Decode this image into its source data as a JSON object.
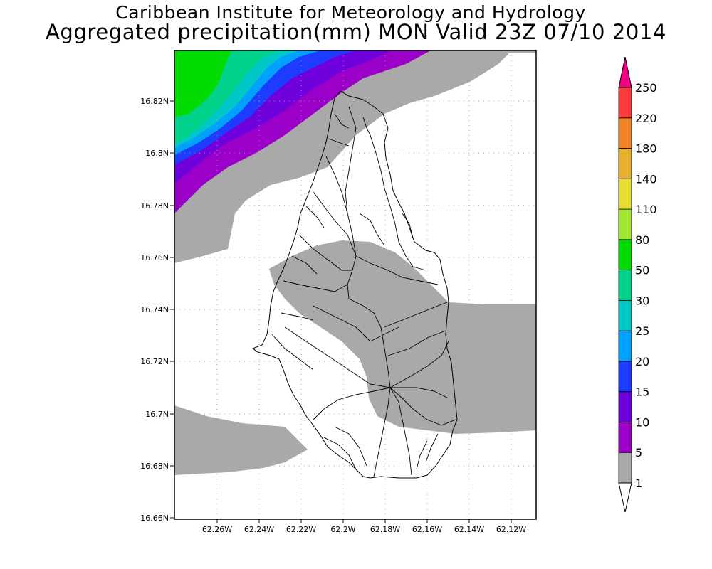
{
  "title": {
    "line1": "Caribbean Institute for Meteorology and Hydrology",
    "line2": "Aggregated precipitation(mm) MON Valid 23Z 07/10 2014"
  },
  "map": {
    "lat_ticks": [
      "16.82N",
      "16.8N",
      "16.78N",
      "16.76N",
      "16.74N",
      "16.72N",
      "16.7N",
      "16.68N",
      "16.66N"
    ],
    "lon_ticks": [
      "62.26W",
      "62.24W",
      "62.22W",
      "62.2W",
      "62.18W",
      "62.16W",
      "62.14W",
      "62.12W"
    ],
    "grid": true,
    "background_color": "#ffffff"
  },
  "legend": {
    "levels": [
      {
        "label": "1",
        "color": "#ffffff"
      },
      {
        "label": "5",
        "color": "#a9a9a9"
      },
      {
        "label": "10",
        "color": "#9b00c8"
      },
      {
        "label": "15",
        "color": "#6e00dc"
      },
      {
        "label": "20",
        "color": "#1e3cff"
      },
      {
        "label": "25",
        "color": "#00a0ff"
      },
      {
        "label": "30",
        "color": "#00c8c8"
      },
      {
        "label": "50",
        "color": "#00d28c"
      },
      {
        "label": "80",
        "color": "#00dc00"
      },
      {
        "label": "110",
        "color": "#a0e632"
      },
      {
        "label": "140",
        "color": "#e6dc32"
      },
      {
        "label": "180",
        "color": "#e6af2d"
      },
      {
        "label": "220",
        "color": "#f08228"
      },
      {
        "label": "250",
        "color": "#fa3c3c"
      }
    ],
    "top_arrow_color": "#f00082",
    "bottom_arrow_color": "#ffffff"
  }
}
